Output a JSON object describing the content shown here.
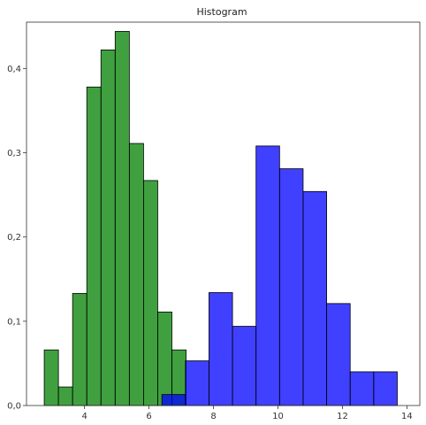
{
  "chart_data": {
    "type": "bar",
    "title": "Histogram",
    "xlabel": "",
    "ylabel": "",
    "xlim": [
      2.2,
      14.4
    ],
    "ylim": [
      0,
      0.455
    ],
    "xticks": [
      {
        "value": 4,
        "label": "4"
      },
      {
        "value": 6,
        "label": "6"
      },
      {
        "value": 8,
        "label": "8"
      },
      {
        "value": 10,
        "label": "10"
      },
      {
        "value": 12,
        "label": "12"
      },
      {
        "value": 14,
        "label": "14"
      }
    ],
    "yticks": [
      {
        "value": 0,
        "label": "0,0"
      },
      {
        "value": 0.1,
        "label": "0,1"
      },
      {
        "value": 0.2,
        "label": "0,2"
      },
      {
        "value": 0.3,
        "label": "0,3"
      },
      {
        "value": 0.4,
        "label": "0,4"
      }
    ],
    "grid": false,
    "series": [
      {
        "color": "#008000",
        "opacity": 0.75,
        "bin_edges": [
          2.75,
          3.19,
          3.63,
          4.07,
          4.51,
          4.95,
          5.39,
          5.83,
          6.27,
          6.71,
          7.15
        ],
        "values": [
          0.066,
          0.022,
          0.133,
          0.378,
          0.422,
          0.444,
          0.311,
          0.267,
          0.111,
          0.066
        ]
      },
      {
        "color": "#0000ff",
        "opacity": 0.75,
        "bin_edges": [
          6.4,
          7.13,
          7.86,
          8.59,
          9.32,
          10.05,
          10.78,
          11.51,
          12.24,
          12.97,
          13.7
        ],
        "values": [
          0.013,
          0.053,
          0.134,
          0.094,
          0.308,
          0.281,
          0.254,
          0.121,
          0.04,
          0.04
        ]
      }
    ]
  }
}
